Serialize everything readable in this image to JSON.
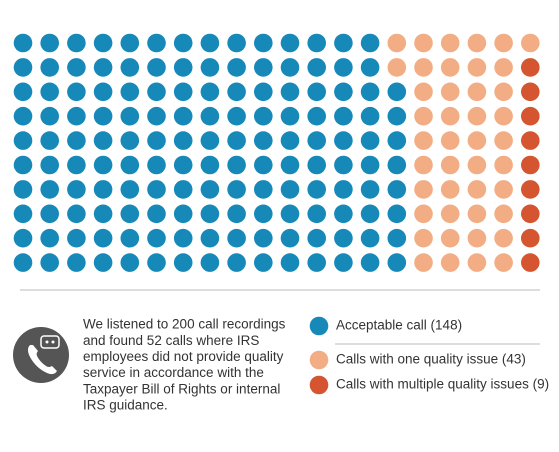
{
  "chart_data": {
    "type": "waffle",
    "columns": 20,
    "rows": 10,
    "series": [
      {
        "name": "Acceptable call (148)",
        "value": 148,
        "color": "#1689b9"
      },
      {
        "name": "Calls with one quality issue (43)",
        "value": 43,
        "color": "#f3ad84"
      },
      {
        "name": "Calls with multiple quality issues (9)",
        "value": 9,
        "color": "#d4552f"
      }
    ],
    "description": [
      "We listened to 200 call recordings",
      "and found 52 calls where IRS",
      "employees did not provide quality",
      "service in accordance with the",
      "Taxpayer Bill of Rights or internal",
      "IRS guidance."
    ]
  }
}
